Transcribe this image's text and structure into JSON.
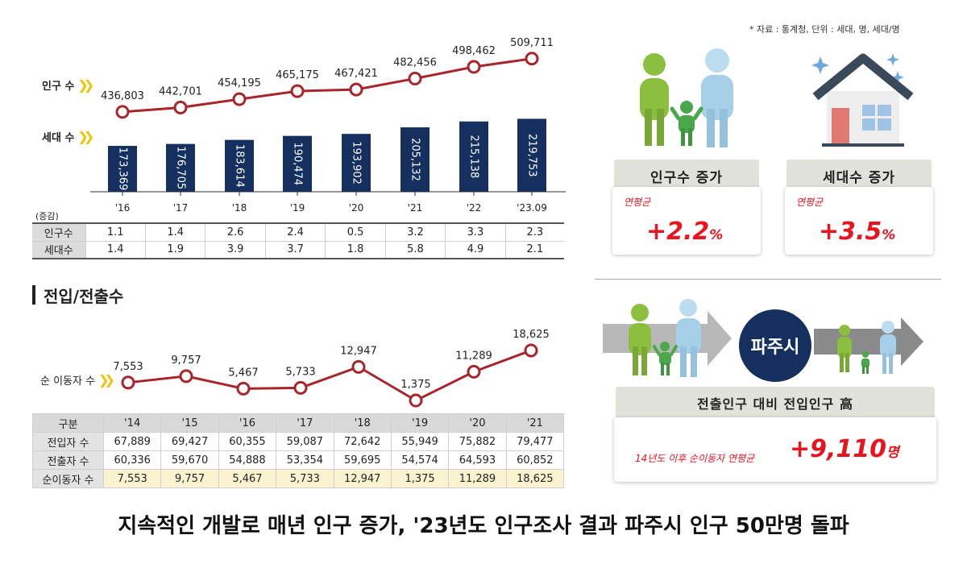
{
  "source_note": "* 자료 : 통계청, 단위 : 세대, 명, 세대/명",
  "population_chart": {
    "series_labels": {
      "population": "인구 수",
      "households": "세대 수"
    }
  },
  "growth_table": {
    "unit_label": "(증감)",
    "rows": [
      {
        "label": "인구수",
        "values": [
          "1.1",
          "1.4",
          "2.6",
          "2.4",
          "0.5",
          "3.2",
          "3.3",
          "2.3"
        ]
      },
      {
        "label": "세대수",
        "values": [
          "1.4",
          "1.9",
          "3.9",
          "3.7",
          "1.8",
          "5.8",
          "4.9",
          "2.1"
        ]
      }
    ]
  },
  "migration_section": {
    "title": "전입/전출수",
    "series_label": "순 이동자 수",
    "table": {
      "header": [
        "구분",
        "'14",
        "'15",
        "'16",
        "'17",
        "'18",
        "'19",
        "'20",
        "'21"
      ],
      "rows": [
        {
          "label": "전입자 수",
          "values": [
            "67,889",
            "69,427",
            "60,355",
            "59,087",
            "72,642",
            "55,949",
            "75,882",
            "79,477"
          ]
        },
        {
          "label": "전출자 수",
          "values": [
            "60,336",
            "59,670",
            "54,888",
            "53,354",
            "59,695",
            "54,574",
            "64,593",
            "60,852"
          ]
        },
        {
          "label": "순이동자 수",
          "values": [
            "7,553",
            "9,757",
            "5,467",
            "5,733",
            "12,947",
            "1,375",
            "11,289",
            "18,625"
          ]
        }
      ]
    }
  },
  "cards": {
    "population": {
      "title": "인구수 증가",
      "rate_label": "연평균",
      "rate_value": "+2.2",
      "rate_unit": "%"
    },
    "households": {
      "title": "세대수 증가",
      "rate_label": "연평균",
      "rate_value": "+3.5",
      "rate_unit": "%"
    }
  },
  "migration_panel": {
    "city": "파주시",
    "headline": "전출인구 대비 전입인구 高",
    "detail_label": "14년도 이후 순이동자 연평균",
    "detail_value": "+9,110",
    "detail_unit": "명"
  },
  "footer_title": "지속적인 개발로 매년 인구 증가, '23년도 인구조사 결과 파주시 인구 50만명 돌파",
  "colors": {
    "line": "#a8262b",
    "bar": "#15305e",
    "accent_red": "#e8141e",
    "chevron": "#f2c200",
    "city_circle": "#15305e"
  },
  "chart_data": [
    {
      "type": "line",
      "name": "population_line",
      "categories": [
        "'16",
        "'17",
        "'18",
        "'19",
        "'20",
        "'21",
        "'22",
        "'23.09"
      ],
      "series": [
        {
          "name": "인구 수",
          "values": [
            436803,
            442701,
            454195,
            465175,
            467421,
            482456,
            498462,
            509711
          ],
          "labels": [
            "436,803",
            "442,701",
            "454,195",
            "465,175",
            "467,421",
            "482,456",
            "498,462",
            "509,711"
          ]
        }
      ]
    },
    {
      "type": "bar",
      "name": "household_bars",
      "categories": [
        "'16",
        "'17",
        "'18",
        "'19",
        "'20",
        "'21",
        "'22",
        "'23.09"
      ],
      "series": [
        {
          "name": "세대 수",
          "values": [
            173369,
            176705,
            183614,
            190474,
            193902,
            205132,
            215138,
            219753
          ],
          "labels": [
            "173,369",
            "176,705",
            "183,614",
            "190,474",
            "193,902",
            "205,132",
            "215,138",
            "219,753"
          ]
        }
      ]
    },
    {
      "type": "line",
      "name": "net_migration_line",
      "categories": [
        "'14",
        "'15",
        "'16",
        "'17",
        "'18",
        "'19",
        "'20",
        "'21"
      ],
      "series": [
        {
          "name": "순 이동자 수",
          "values": [
            7553,
            9757,
            5467,
            5733,
            12947,
            1375,
            11289,
            18625
          ],
          "labels": [
            "7,553",
            "9,757",
            "5,467",
            "5,733",
            "12,947",
            "1,375",
            "11,289",
            "18,625"
          ]
        }
      ]
    }
  ]
}
